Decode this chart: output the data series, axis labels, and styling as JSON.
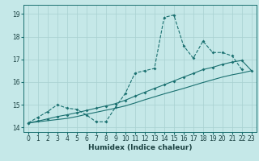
{
  "xlabel": "Humidex (Indice chaleur)",
  "xlim": [
    -0.5,
    23.5
  ],
  "ylim": [
    13.8,
    19.4
  ],
  "yticks": [
    14,
    15,
    16,
    17,
    18,
    19
  ],
  "xticks": [
    0,
    1,
    2,
    3,
    4,
    5,
    6,
    7,
    8,
    9,
    10,
    11,
    12,
    13,
    14,
    15,
    16,
    17,
    18,
    19,
    20,
    21,
    22,
    23
  ],
  "bg_color": "#c5e8e8",
  "grid_color": "#a8d0d0",
  "line_color": "#1a7070",
  "curve1_x": [
    0,
    1,
    2,
    3,
    4,
    5,
    6,
    7,
    8,
    9,
    10,
    11,
    12,
    13,
    14,
    15,
    16,
    17,
    18,
    19,
    20,
    21,
    22
  ],
  "curve1_y": [
    14.2,
    14.45,
    14.7,
    15.0,
    14.85,
    14.8,
    14.55,
    14.25,
    14.25,
    14.9,
    15.5,
    16.4,
    16.5,
    16.6,
    18.85,
    18.95,
    17.6,
    17.05,
    17.8,
    17.3,
    17.3,
    17.15,
    16.55
  ],
  "curve2_x": [
    0,
    1,
    2,
    3,
    4,
    5,
    6,
    7,
    8,
    9,
    10,
    11,
    12,
    13,
    14,
    15,
    16,
    17,
    18,
    19,
    20,
    21,
    22,
    23
  ],
  "curve2_y": [
    14.2,
    14.28,
    14.38,
    14.48,
    14.56,
    14.65,
    14.75,
    14.85,
    14.95,
    15.05,
    15.2,
    15.38,
    15.55,
    15.72,
    15.88,
    16.05,
    16.22,
    16.38,
    16.55,
    16.65,
    16.78,
    16.88,
    16.95,
    16.5
  ],
  "curve3_x": [
    0,
    1,
    2,
    3,
    4,
    5,
    6,
    7,
    8,
    9,
    10,
    11,
    12,
    13,
    14,
    15,
    16,
    17,
    18,
    19,
    20,
    21,
    22,
    23
  ],
  "curve3_y": [
    14.2,
    14.25,
    14.3,
    14.35,
    14.4,
    14.48,
    14.58,
    14.67,
    14.76,
    14.85,
    14.95,
    15.08,
    15.22,
    15.35,
    15.48,
    15.6,
    15.72,
    15.85,
    15.98,
    16.1,
    16.22,
    16.32,
    16.4,
    16.5
  ]
}
